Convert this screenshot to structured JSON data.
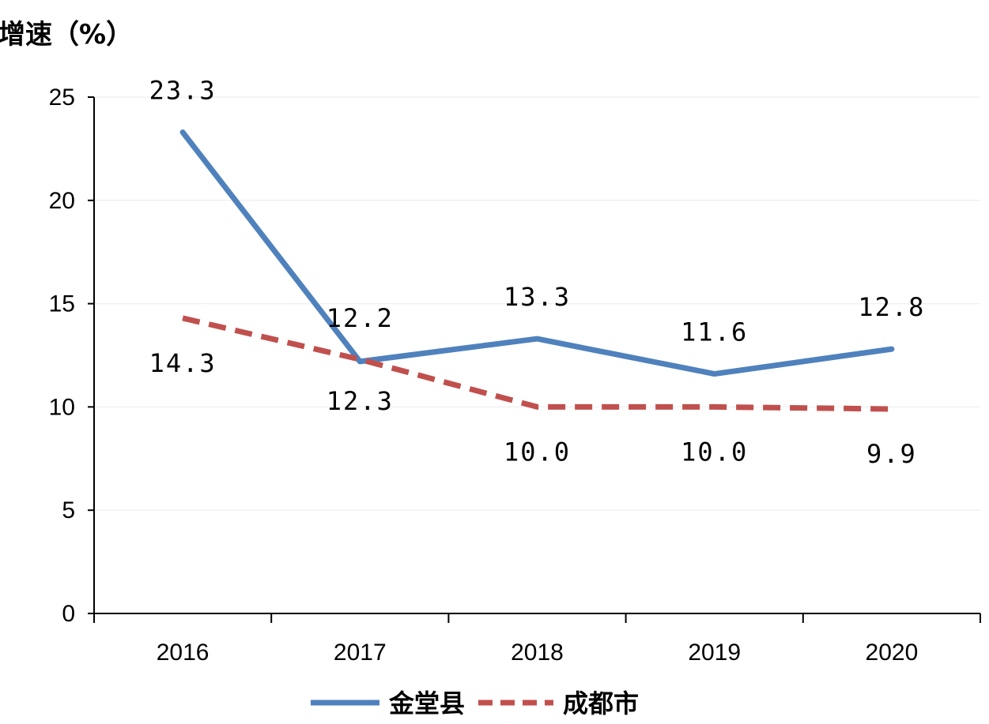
{
  "chart_data": {
    "type": "line",
    "ylabel": "增速（%）",
    "xlabel": "",
    "categories": [
      "2016",
      "2017",
      "2018",
      "2019",
      "2020"
    ],
    "ylim": [
      0,
      25
    ],
    "yticks": [
      "0",
      "5",
      "10",
      "15",
      "20",
      "25"
    ],
    "grid": true,
    "legend_position": "bottom",
    "series": [
      {
        "name": "金堂县",
        "values": [
          23.3,
          12.2,
          13.3,
          11.6,
          12.8
        ],
        "labels": [
          "23.3",
          "12.2",
          "13.3",
          "11.6",
          "12.8"
        ],
        "color": "#4f81bd",
        "dash": "solid"
      },
      {
        "name": "成都市",
        "values": [
          14.3,
          12.3,
          10.0,
          10.0,
          9.9
        ],
        "labels": [
          "14.3",
          "12.3",
          "10.0",
          "10.0",
          "9.9"
        ],
        "color": "#c0504d",
        "dash": "dashed"
      }
    ]
  }
}
